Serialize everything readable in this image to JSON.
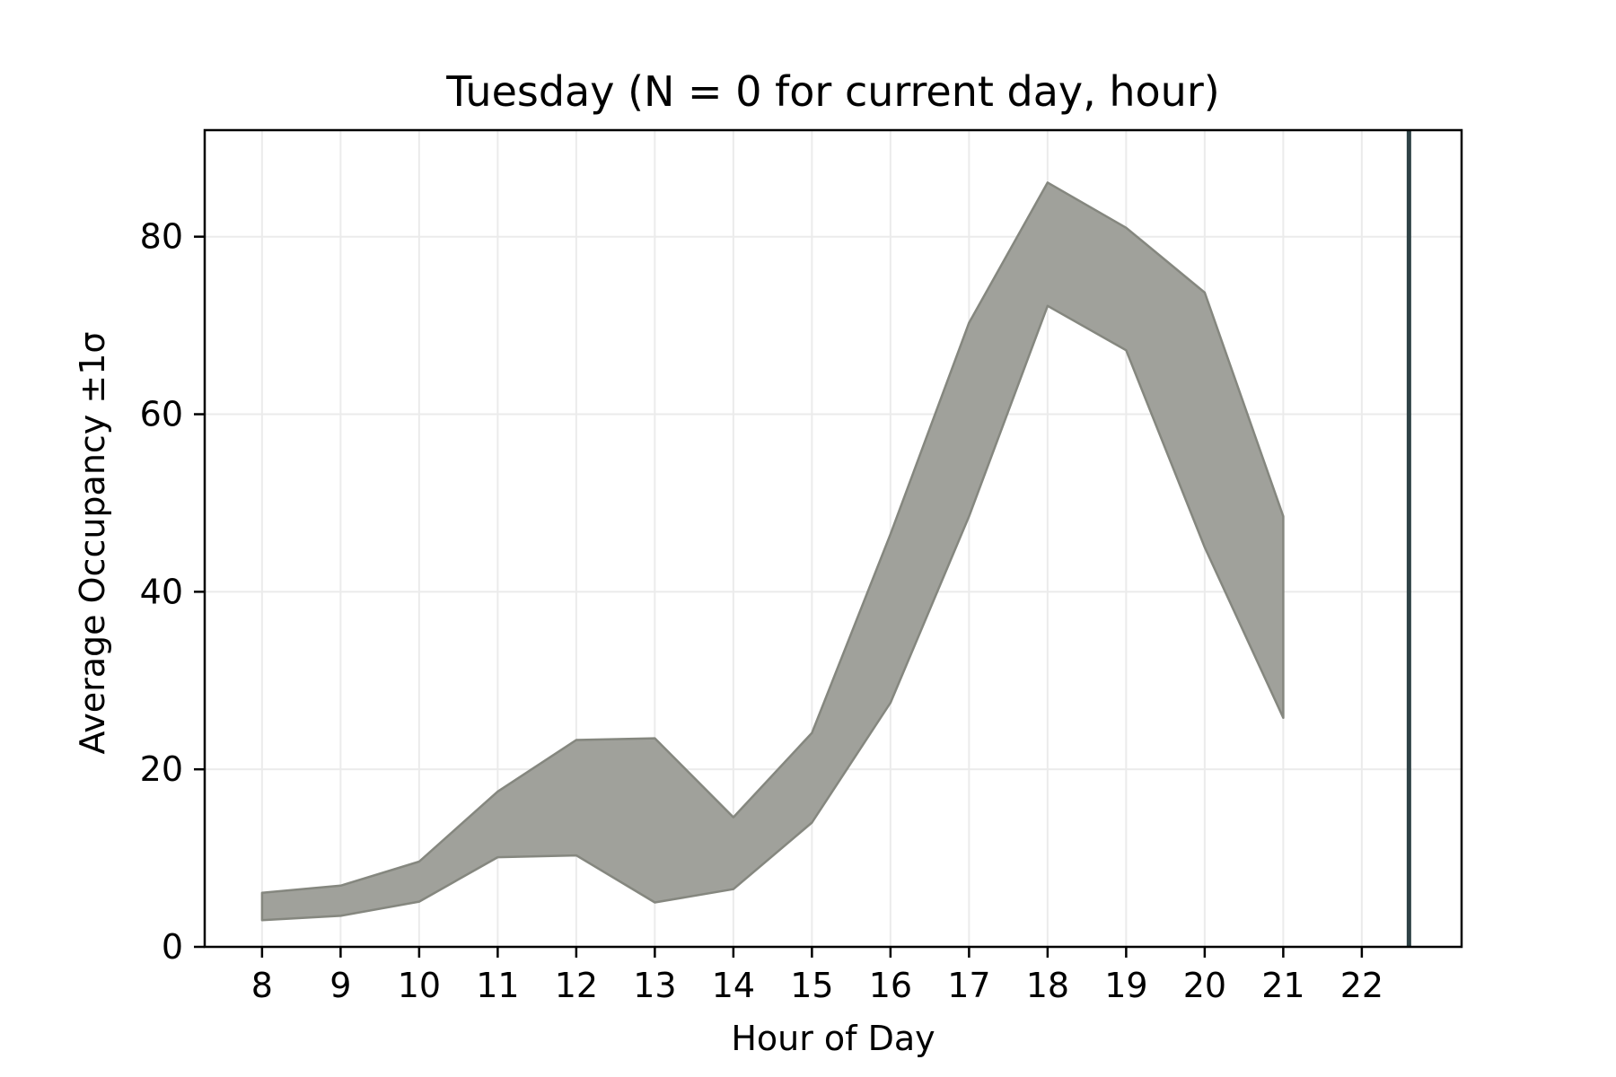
{
  "chart_data": {
    "type": "area",
    "title": "Tuesday (N = 0 for current day, hour)",
    "xlabel": "Hour of Day",
    "ylabel": "Average Occupancy ±1σ",
    "x_ticks": [
      "8",
      "9",
      "10",
      "11",
      "12",
      "13",
      "14",
      "15",
      "16",
      "17",
      "18",
      "19",
      "20",
      "21",
      "22"
    ],
    "y_ticks": [
      "0",
      "20",
      "40",
      "60",
      "80"
    ],
    "xlim": [
      7.27,
      23.27
    ],
    "ylim": [
      0,
      92
    ],
    "grid": true,
    "band": {
      "x": [
        8,
        9,
        10,
        11,
        12,
        13,
        14,
        15,
        16,
        17,
        18,
        19,
        20,
        21
      ],
      "lower": [
        3.0,
        3.5,
        5.1,
        10.1,
        10.3,
        5.0,
        6.5,
        14.0,
        27.5,
        48.5,
        72.2,
        67.2,
        45.0,
        25.8
      ],
      "upper": [
        6.1,
        6.9,
        9.6,
        17.5,
        23.3,
        23.5,
        14.6,
        24.1,
        46.5,
        70.3,
        86.1,
        81.0,
        73.7,
        48.5
      ],
      "color": "#a0a19b",
      "edge_color": "#85877f"
    },
    "vline": {
      "x": 22.6,
      "color": "#2f4246"
    }
  }
}
